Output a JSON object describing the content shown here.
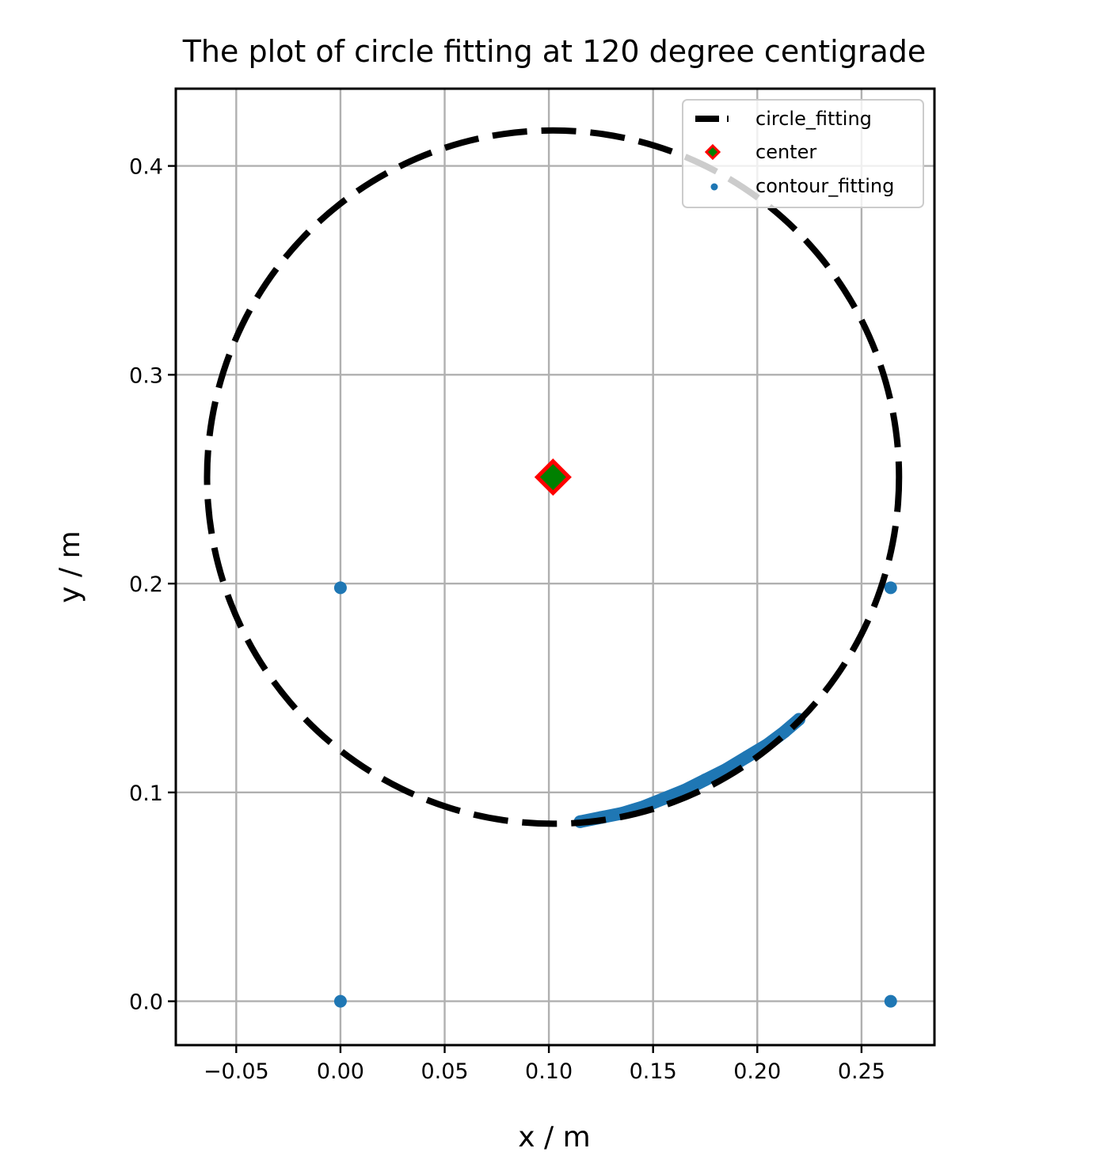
{
  "chart_data": {
    "type": "scatter",
    "title": "The plot of circle fitting at 120 degree centigrade",
    "xlabel": "x / m",
    "ylabel": "y / m",
    "xlim": [
      -0.079,
      0.285
    ],
    "ylim": [
      -0.021,
      0.437
    ],
    "xticks": [
      -0.05,
      0.0,
      0.05,
      0.1,
      0.15,
      0.2,
      0.25
    ],
    "xtick_labels": [
      "−0.05",
      "0.00",
      "0.05",
      "0.10",
      "0.15",
      "0.20",
      "0.25"
    ],
    "yticks": [
      0.0,
      0.1,
      0.2,
      0.3,
      0.4
    ],
    "ytick_labels": [
      "0.0",
      "0.1",
      "0.2",
      "0.3",
      "0.4"
    ],
    "grid": true,
    "legend_position": "top-right",
    "circle_fit": {
      "name": "circle_fitting",
      "center": [
        0.102,
        0.251
      ],
      "radius": 0.166,
      "style": "dashed",
      "color": "#000000"
    },
    "center_point": {
      "name": "center",
      "x": 0.102,
      "y": 0.251,
      "marker": "diamond",
      "face_color": "#008000",
      "edge_color": "#ff0000"
    },
    "contour_points": {
      "name": "contour_fitting",
      "color": "#1f77b4",
      "x": [
        0.0,
        0.0,
        0.264,
        0.264,
        0.115,
        0.125,
        0.135,
        0.145,
        0.155,
        0.165,
        0.175,
        0.185,
        0.195,
        0.205,
        0.213,
        0.22
      ],
      "y": [
        0.0,
        0.198,
        0.198,
        0.0,
        0.086,
        0.088,
        0.09,
        0.093,
        0.097,
        0.101,
        0.106,
        0.111,
        0.117,
        0.123,
        0.129,
        0.135
      ]
    }
  }
}
